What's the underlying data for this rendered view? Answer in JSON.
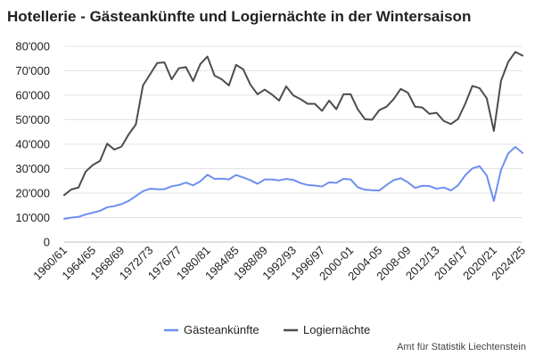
{
  "chart_data": {
    "type": "line",
    "title": "Hotellerie - Gästeankünfte und Logiernächte in der Wintersaison",
    "source": "Amt für Statistik Liechtenstein",
    "ylim": [
      0,
      80000
    ],
    "yticks": [
      0,
      10000,
      20000,
      30000,
      40000,
      50000,
      60000,
      70000,
      80000
    ],
    "ytick_labels": [
      "0",
      "10'000",
      "20'000",
      "30'000",
      "40'000",
      "50'000",
      "60'000",
      "70'000",
      "80'000"
    ],
    "grid": true,
    "legend_position": "bottom",
    "x": [
      "1960/61",
      "1961/62",
      "1962/63",
      "1963/64",
      "1964/65",
      "1965/66",
      "1966/67",
      "1967/68",
      "1968/69",
      "1969/70",
      "1970/71",
      "1971/72",
      "1972/73",
      "1973/74",
      "1974/75",
      "1975/76",
      "1976/77",
      "1977/78",
      "1978/79",
      "1979/80",
      "1980/81",
      "1981/82",
      "1982/83",
      "1983/84",
      "1984/85",
      "1985/86",
      "1986/87",
      "1987/88",
      "1988/89",
      "1989/90",
      "1990/91",
      "1991/92",
      "1992/93",
      "1993/94",
      "1994/95",
      "1995/96",
      "1996/97",
      "1997/98",
      "1998/99",
      "1999/00",
      "2000/01",
      "2001/02",
      "2002/03",
      "2003/04",
      "2004/05",
      "2005/06",
      "2006/07",
      "2007/08",
      "2008/09",
      "2009/10",
      "2010/11",
      "2011/12",
      "2012/13",
      "2013/14",
      "2014/15",
      "2015/16",
      "2016/17",
      "2017/18",
      "2018/19",
      "2019/20",
      "2020/21",
      "2021/22",
      "2022/23",
      "2023/24",
      "2024/25"
    ],
    "xtick_labels": [
      {
        "index": 0,
        "label": "1960/61"
      },
      {
        "index": 4,
        "label": "1964/65"
      },
      {
        "index": 8,
        "label": "1968/69"
      },
      {
        "index": 12,
        "label": "1972/73"
      },
      {
        "index": 16,
        "label": "1976/77"
      },
      {
        "index": 20,
        "label": "1980/81"
      },
      {
        "index": 24,
        "label": "1984/85"
      },
      {
        "index": 28,
        "label": "1988/89"
      },
      {
        "index": 32,
        "label": "1992/93"
      },
      {
        "index": 36,
        "label": "1996/97"
      },
      {
        "index": 40,
        "label": "2000-01"
      },
      {
        "index": 44,
        "label": "2004-05"
      },
      {
        "index": 48,
        "label": "2008-09"
      },
      {
        "index": 52,
        "label": "2012/13"
      },
      {
        "index": 56,
        "label": "2016/17"
      },
      {
        "index": 60,
        "label": "2020/21"
      },
      {
        "index": 64,
        "label": "2024/25"
      }
    ],
    "series": [
      {
        "name": "Gästeankünfte",
        "color": "#6d8ff0",
        "values": [
          9500,
          10000,
          10300,
          11300,
          12000,
          12800,
          14200,
          14700,
          15500,
          16800,
          18800,
          20800,
          21800,
          21600,
          21600,
          22800,
          23300,
          24300,
          23200,
          24800,
          27500,
          25800,
          25900,
          25600,
          27400,
          26400,
          25300,
          23800,
          25600,
          25600,
          25200,
          25800,
          25400,
          24100,
          23300,
          23100,
          22700,
          24400,
          24200,
          25800,
          25600,
          22400,
          21400,
          21200,
          21100,
          23300,
          25300,
          26100,
          24400,
          22100,
          23000,
          22900,
          21800,
          22300,
          21100,
          23200,
          27300,
          30100,
          31000,
          27200,
          16800,
          29500,
          36200,
          38900,
          36400
        ]
      },
      {
        "name": "Logiernächte",
        "color": "#4d4d4d",
        "values": [
          19200,
          21500,
          22300,
          28800,
          31500,
          33200,
          40200,
          37800,
          39000,
          44000,
          48000,
          64000,
          68600,
          73200,
          73400,
          66500,
          71000,
          71500,
          65800,
          72700,
          75800,
          68000,
          66500,
          64000,
          72400,
          70600,
          64300,
          60400,
          62300,
          60300,
          57800,
          63600,
          59900,
          58400,
          56500,
          56500,
          53600,
          57800,
          54300,
          60400,
          60400,
          54200,
          50200,
          50000,
          53900,
          55300,
          58400,
          62600,
          61000,
          55300,
          55000,
          52400,
          52800,
          49500,
          48200,
          50300,
          56500,
          63800,
          62900,
          58800,
          45400,
          65900,
          73600,
          77700,
          76200
        ]
      }
    ]
  }
}
